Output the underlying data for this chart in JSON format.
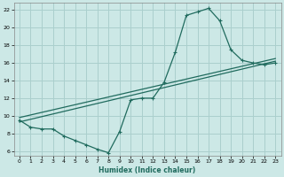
{
  "xlabel": "Humidex (Indice chaleur)",
  "background_color": "#cce8e6",
  "grid_color": "#aacfcd",
  "line_color": "#206b5e",
  "xlim": [
    -0.5,
    23.5
  ],
  "ylim": [
    5.5,
    22.8
  ],
  "xticks": [
    0,
    1,
    2,
    3,
    4,
    5,
    6,
    7,
    8,
    9,
    10,
    11,
    12,
    13,
    14,
    15,
    16,
    17,
    18,
    19,
    20,
    21,
    22,
    23
  ],
  "yticks": [
    6,
    8,
    10,
    12,
    14,
    16,
    18,
    20,
    22
  ],
  "curve1_x": [
    0,
    1,
    2,
    3,
    4,
    5,
    6,
    7,
    8,
    9,
    10,
    11,
    12,
    13,
    14,
    15,
    16,
    17,
    18,
    19,
    20,
    21,
    22,
    23
  ],
  "curve1_y": [
    9.5,
    8.7,
    8.5,
    8.5,
    7.7,
    7.2,
    6.7,
    6.2,
    5.8,
    8.2,
    11.8,
    12.0,
    12.0,
    13.8,
    17.2,
    21.4,
    21.8,
    22.2,
    20.8,
    17.5,
    16.3,
    16.0,
    15.8,
    16.0
  ],
  "line1_x": [
    0,
    23
  ],
  "line1_y": [
    9.3,
    16.2
  ],
  "line2_x": [
    0,
    23
  ],
  "line2_y": [
    9.8,
    16.5
  ]
}
